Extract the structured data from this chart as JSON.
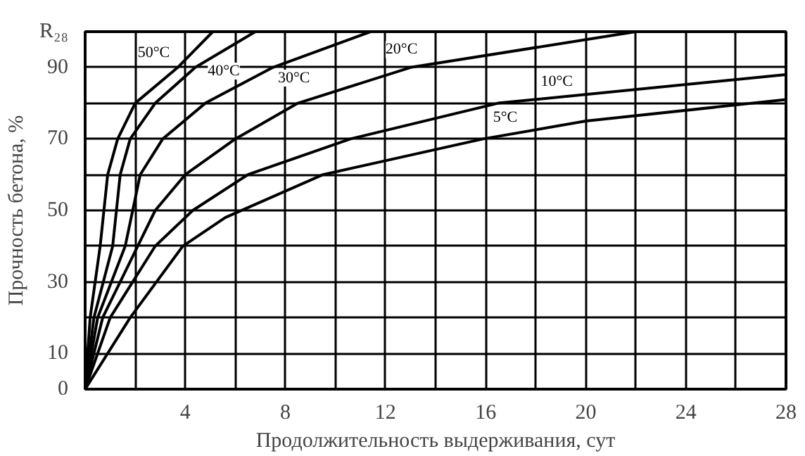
{
  "chart_data": {
    "type": "line",
    "xlabel": "Продолжительность выдерживания, сут",
    "ylabel": "Прочность бетона, %",
    "xlim": [
      0,
      28
    ],
    "ylim": [
      0,
      100
    ],
    "xticks": [
      {
        "value": 2,
        "label": null
      },
      4,
      {
        "value": 6,
        "label": null
      },
      8,
      {
        "value": 10,
        "label": null
      },
      12,
      {
        "value": 14,
        "label": null
      },
      16,
      {
        "value": 18,
        "label": null
      },
      20,
      {
        "value": 22,
        "label": null
      },
      24,
      {
        "value": 26,
        "label": null
      },
      28
    ],
    "yticks": [
      0,
      10,
      {
        "value": 20,
        "label": null
      },
      30,
      {
        "value": 40,
        "label": null
      },
      50,
      {
        "value": 60,
        "label": null
      },
      70,
      {
        "value": 80,
        "label": null
      },
      90,
      {
        "value": 100,
        "label": "R₂₈"
      }
    ],
    "grid": true,
    "marker": "none",
    "line_style": "solid",
    "series": [
      {
        "name": "50°C",
        "color": "#000000",
        "x": [
          0,
          0.2,
          0.6,
          0.9,
          1.3,
          2,
          3.7,
          5.1
        ],
        "values": [
          0,
          20,
          40,
          60,
          70,
          80,
          90,
          100
        ]
      },
      {
        "name": "40°C",
        "color": "#000000",
        "x": [
          0,
          0.35,
          1.1,
          1.4,
          1.8,
          2.8,
          4.4,
          6.8
        ],
        "values": [
          0,
          20,
          40,
          60,
          70,
          80,
          90,
          100
        ]
      },
      {
        "name": "30°C",
        "color": "#000000",
        "x": [
          0,
          0.5,
          1.6,
          2.2,
          3.1,
          4.8,
          7.5,
          11.4
        ],
        "values": [
          0,
          20,
          40,
          60,
          70,
          80,
          90,
          100
        ]
      },
      {
        "name": "20°C",
        "color": "#000000",
        "x": [
          0,
          0.7,
          2.1,
          2.8,
          4,
          6,
          8.5,
          13,
          22
        ],
        "values": [
          0,
          20,
          40,
          50,
          60,
          70,
          80,
          90,
          100
        ]
      },
      {
        "name": "10°C",
        "color": "#000000",
        "x": [
          0,
          1,
          2.8,
          4.3,
          6.5,
          10.6,
          16.5,
          28
        ],
        "values": [
          0,
          20,
          40,
          50,
          60,
          70,
          80,
          88
        ]
      },
      {
        "name": "5°C",
        "color": "#000000",
        "x": [
          0,
          1.8,
          3.9,
          5.6,
          9.5,
          15.9,
          20,
          28
        ],
        "values": [
          0,
          20,
          40,
          48,
          60,
          70,
          75,
          81
        ]
      }
    ],
    "legend": false
  }
}
